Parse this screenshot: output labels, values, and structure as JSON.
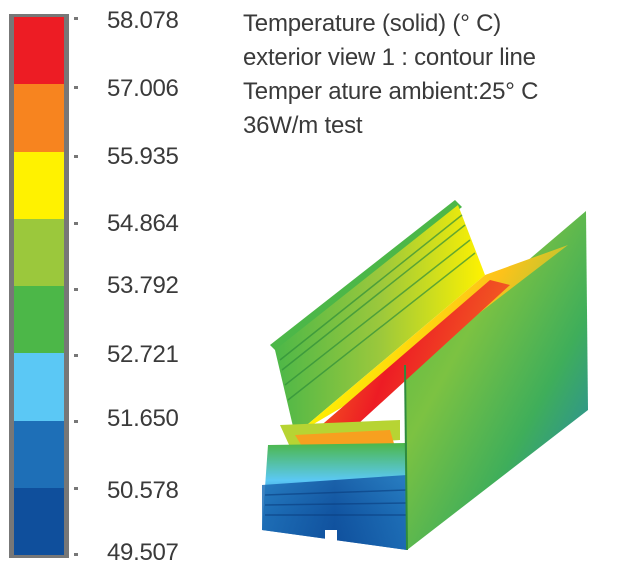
{
  "legend": {
    "values": [
      "58.078",
      "57.006",
      "55.935",
      "54.864",
      "53.792",
      "52.721",
      "51.650",
      "50.578",
      "49.507"
    ],
    "band_colors": [
      "#ed1c24",
      "#f7841f",
      "#fff200",
      "#9bc83c",
      "#4cb748",
      "#5bc8f5",
      "#1e6fb7",
      "#0f4f9c"
    ]
  },
  "title": {
    "line1": "Temperature (solid) (° C)",
    "line2": "exterior view 1 : contour line",
    "line3": "Temper ature ambient:25° C",
    "line4": "36W/m test"
  },
  "colors": {
    "hot": "#ed1c24",
    "warm": "#f7841f",
    "mid": "#fff200",
    "cool": "#4cb748",
    "cold": "#0f4f9c",
    "frame": "#777777",
    "text": "#3a3a3a"
  }
}
